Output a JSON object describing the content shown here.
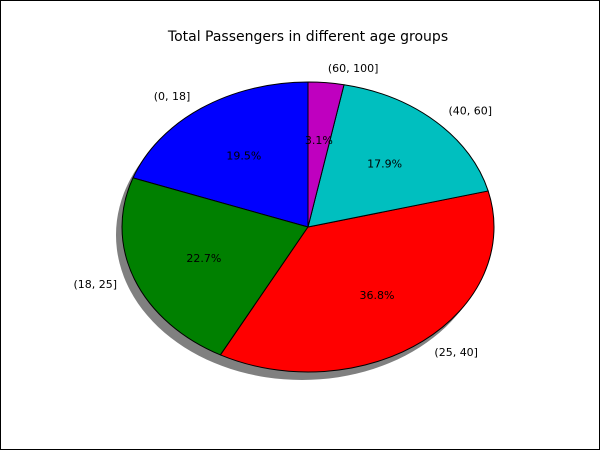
{
  "chart_data": {
    "type": "pie",
    "title": "Total Passengers in different age groups",
    "start_angle_deg": 90,
    "direction": "counterclockwise",
    "shadow": true,
    "slices": [
      {
        "label": "(0, 18]",
        "pct_label": "19.5%",
        "value": 19.5,
        "color": "#0000ff"
      },
      {
        "label": "(18, 25]",
        "pct_label": "22.7%",
        "value": 22.7,
        "color": "#008000"
      },
      {
        "label": "(25, 40]",
        "pct_label": "36.8%",
        "value": 36.8,
        "color": "#ff0000"
      },
      {
        "label": "(40, 60]",
        "pct_label": "17.9%",
        "value": 17.9,
        "color": "#00bfbf"
      },
      {
        "label": "(60, 100]",
        "pct_label": "3.1%",
        "value": 3.1,
        "color": "#bf00bf"
      }
    ]
  }
}
